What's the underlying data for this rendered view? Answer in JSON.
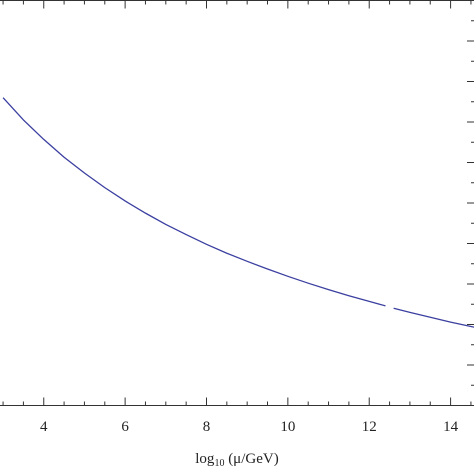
{
  "chart_data": {
    "type": "line",
    "title": "",
    "xlabel_parts": {
      "log": "log",
      "base": "10",
      "rest": " (μ/GeV)"
    },
    "ylabel": "",
    "xlim": [
      2.9,
      14.6
    ],
    "ylim": [
      0,
      1
    ],
    "x_ticks": [
      4,
      6,
      8,
      10,
      12,
      14
    ],
    "x_tick_labels": [
      "4",
      "6",
      "8",
      "10",
      "12",
      "14"
    ],
    "grid": false,
    "series": [
      {
        "color": "#3b3fa0",
        "segments": [
          {
            "x": [
              3.0,
              3.5,
              4.0,
              4.5,
              5.0,
              5.5,
              6.0,
              6.5,
              7.0,
              7.5,
              8.0,
              8.5,
              9.0,
              9.5,
              10.0,
              10.5,
              11.0,
              11.5,
              12.0,
              12.4
            ],
            "y": [
              0.76,
              0.705,
              0.657,
              0.613,
              0.574,
              0.538,
              0.505,
              0.475,
              0.447,
              0.422,
              0.398,
              0.376,
              0.356,
              0.337,
              0.319,
              0.302,
              0.286,
              0.271,
              0.257,
              0.246
            ]
          },
          {
            "x": [
              12.6,
              13.0,
              13.5,
              14.0,
              14.5,
              14.6
            ],
            "y": [
              0.24,
              0.23,
              0.218,
              0.206,
              0.195,
              0.193
            ]
          }
        ]
      }
    ]
  }
}
